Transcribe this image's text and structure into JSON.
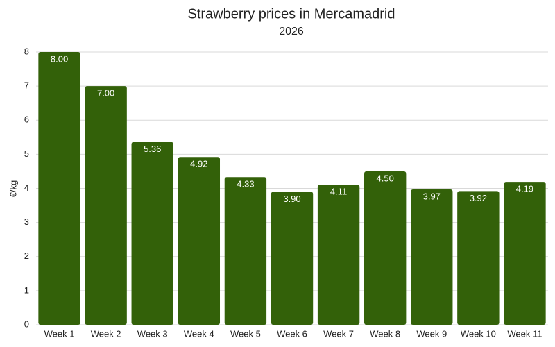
{
  "chart_data": {
    "type": "bar",
    "title": "Strawberry prices in Mercamadrid",
    "subtitle": "2026",
    "y_label": "€/kg",
    "categories": [
      "Week 1",
      "Week 2",
      "Week 3",
      "Week 4",
      "Week 5",
      "Week 6",
      "Week 7",
      "Week 8",
      "Week 9",
      "Week 10",
      "Week 11"
    ],
    "values": [
      8,
      7,
      5.36,
      4.92,
      4.33,
      3.9,
      4.11,
      4.5,
      3.97,
      3.92,
      4.19
    ],
    "value_labels": [
      "8.00",
      "7.00",
      "5.36",
      "4.92",
      "4.33",
      "3.90",
      "4.11",
      "4.50",
      "3.97",
      "3.92",
      "4.19"
    ],
    "color": "#336109",
    "ylim": [
      0,
      8
    ],
    "yticks": [
      0,
      1,
      2,
      3,
      4,
      5,
      6,
      7,
      8
    ],
    "grid": true
  }
}
